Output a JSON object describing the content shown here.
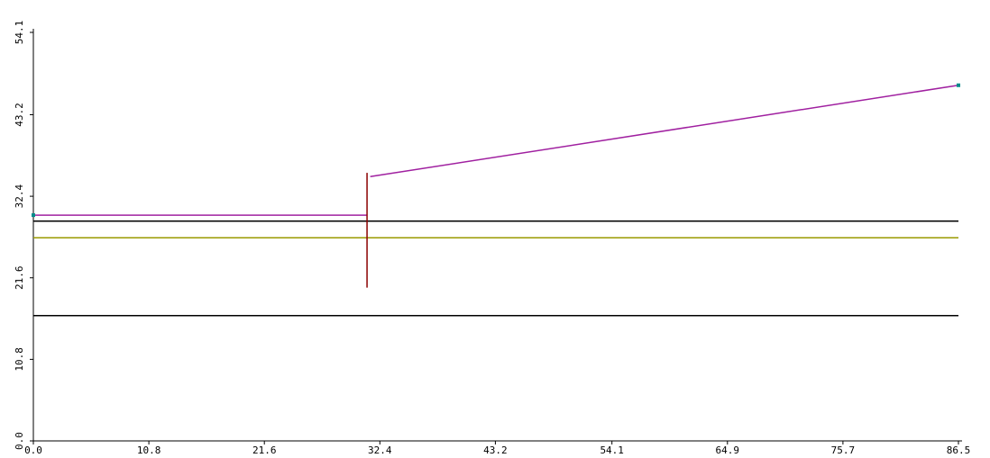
{
  "chart_data": {
    "type": "line",
    "xlim": [
      0,
      86.5
    ],
    "xticks": [
      {
        "value": 0,
        "label": "0.0"
      },
      10.8,
      21.6,
      32.4,
      43.2,
      54.1,
      64.9,
      75.7,
      86.5
    ],
    "ylim": [
      0,
      54.1
    ],
    "yticks": [
      {
        "value": 0,
        "label": "0.0"
      },
      10.8,
      21.6,
      32.4,
      43.2,
      54.1
    ],
    "grid": false,
    "series": [
      {
        "color": "#a020a0",
        "x": [
          0,
          31.2
        ],
        "values": [
          29.9,
          29.9
        ]
      },
      {
        "color": "#a020a0",
        "x": [
          31.5,
          86.5
        ],
        "values": [
          35.0,
          47.1
        ]
      },
      {
        "color": "#000000",
        "x": [
          0,
          86.5
        ],
        "values": [
          29.1,
          29.1
        ]
      },
      {
        "color": "#000000",
        "x": [
          0,
          86.5
        ],
        "values": [
          16.6,
          16.6
        ]
      },
      {
        "color": "#9a9a00",
        "x": [
          0,
          86.5
        ],
        "values": [
          26.9,
          26.9
        ]
      },
      {
        "color": "#8b0000",
        "x": [
          31.2,
          31.2
        ],
        "values": [
          20.3,
          35.5
        ]
      },
      {
        "color": "#008b8b",
        "mode": "markers",
        "x": [
          0,
          86.5
        ],
        "values": [
          29.9,
          47.1
        ]
      }
    ]
  }
}
